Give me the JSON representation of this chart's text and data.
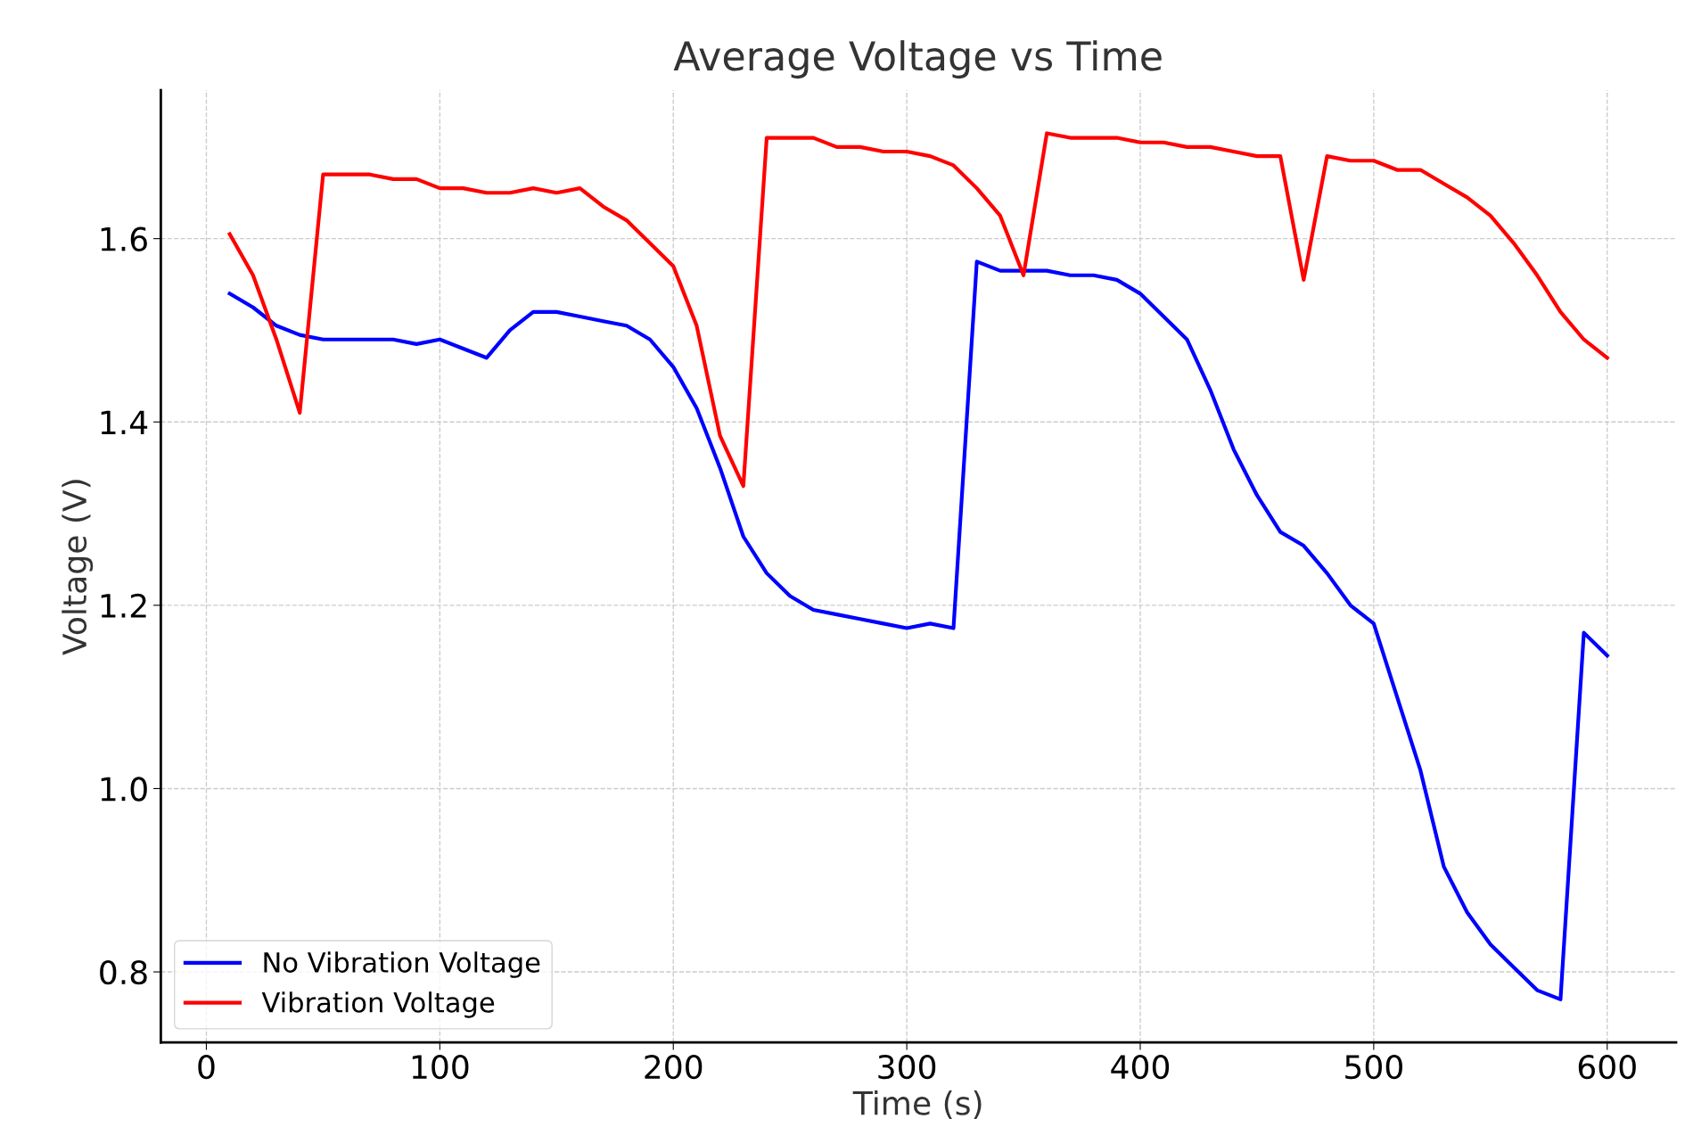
{
  "chart_data": {
    "type": "line",
    "title": "Average Voltage vs Time",
    "xlabel": "Time (s)",
    "ylabel": "Voltage (V)",
    "x": [
      10,
      20,
      30,
      40,
      50,
      60,
      70,
      80,
      90,
      100,
      110,
      120,
      130,
      140,
      150,
      160,
      170,
      180,
      190,
      200,
      210,
      220,
      230,
      240,
      250,
      260,
      270,
      280,
      290,
      300,
      310,
      320,
      330,
      340,
      350,
      360,
      370,
      380,
      390,
      400,
      410,
      420,
      430,
      440,
      450,
      460,
      470,
      480,
      490,
      500,
      510,
      520,
      530,
      540,
      550,
      560,
      570,
      580,
      590,
      600
    ],
    "series": [
      {
        "name": "No Vibration Voltage",
        "color": "#0000ff",
        "values": [
          1.54,
          1.525,
          1.505,
          1.495,
          1.49,
          1.49,
          1.49,
          1.49,
          1.485,
          1.49,
          1.48,
          1.47,
          1.5,
          1.52,
          1.52,
          1.515,
          1.51,
          1.505,
          1.49,
          1.46,
          1.415,
          1.35,
          1.275,
          1.235,
          1.21,
          1.195,
          1.19,
          1.185,
          1.18,
          1.175,
          1.18,
          1.175,
          1.575,
          1.565,
          1.565,
          1.565,
          1.56,
          1.56,
          1.555,
          1.54,
          1.515,
          1.49,
          1.435,
          1.37,
          1.32,
          1.28,
          1.265,
          1.235,
          1.2,
          1.18,
          1.1,
          1.02,
          0.915,
          0.865,
          0.83,
          0.805,
          0.78,
          0.77,
          1.17,
          1.145
        ]
      },
      {
        "name": "Vibration Voltage",
        "color": "#ff0000",
        "values": [
          1.605,
          1.56,
          1.49,
          1.41,
          1.67,
          1.67,
          1.67,
          1.665,
          1.665,
          1.655,
          1.655,
          1.65,
          1.65,
          1.655,
          1.65,
          1.655,
          1.635,
          1.62,
          1.595,
          1.57,
          1.505,
          1.385,
          1.33,
          1.71,
          1.71,
          1.71,
          1.7,
          1.7,
          1.695,
          1.695,
          1.69,
          1.68,
          1.655,
          1.625,
          1.56,
          1.715,
          1.71,
          1.71,
          1.71,
          1.705,
          1.705,
          1.7,
          1.7,
          1.695,
          1.69,
          1.69,
          1.555,
          1.69,
          1.685,
          1.685,
          1.675,
          1.675,
          1.66,
          1.645,
          1.625,
          1.595,
          1.56,
          1.52,
          1.49,
          1.47
        ]
      }
    ],
    "xlim": [
      -19.5,
      629.5
    ],
    "xticks": [
      0,
      100,
      200,
      300,
      400,
      500,
      600
    ],
    "ylim": [
      0.723,
      1.762
    ],
    "yticks": [
      0.8,
      {
        "value": 1,
        "label": "1.0"
      },
      1.2,
      1.4,
      1.6
    ],
    "grid": true,
    "legend": "bottom left",
    "line_style": "solid",
    "marker": "none"
  }
}
